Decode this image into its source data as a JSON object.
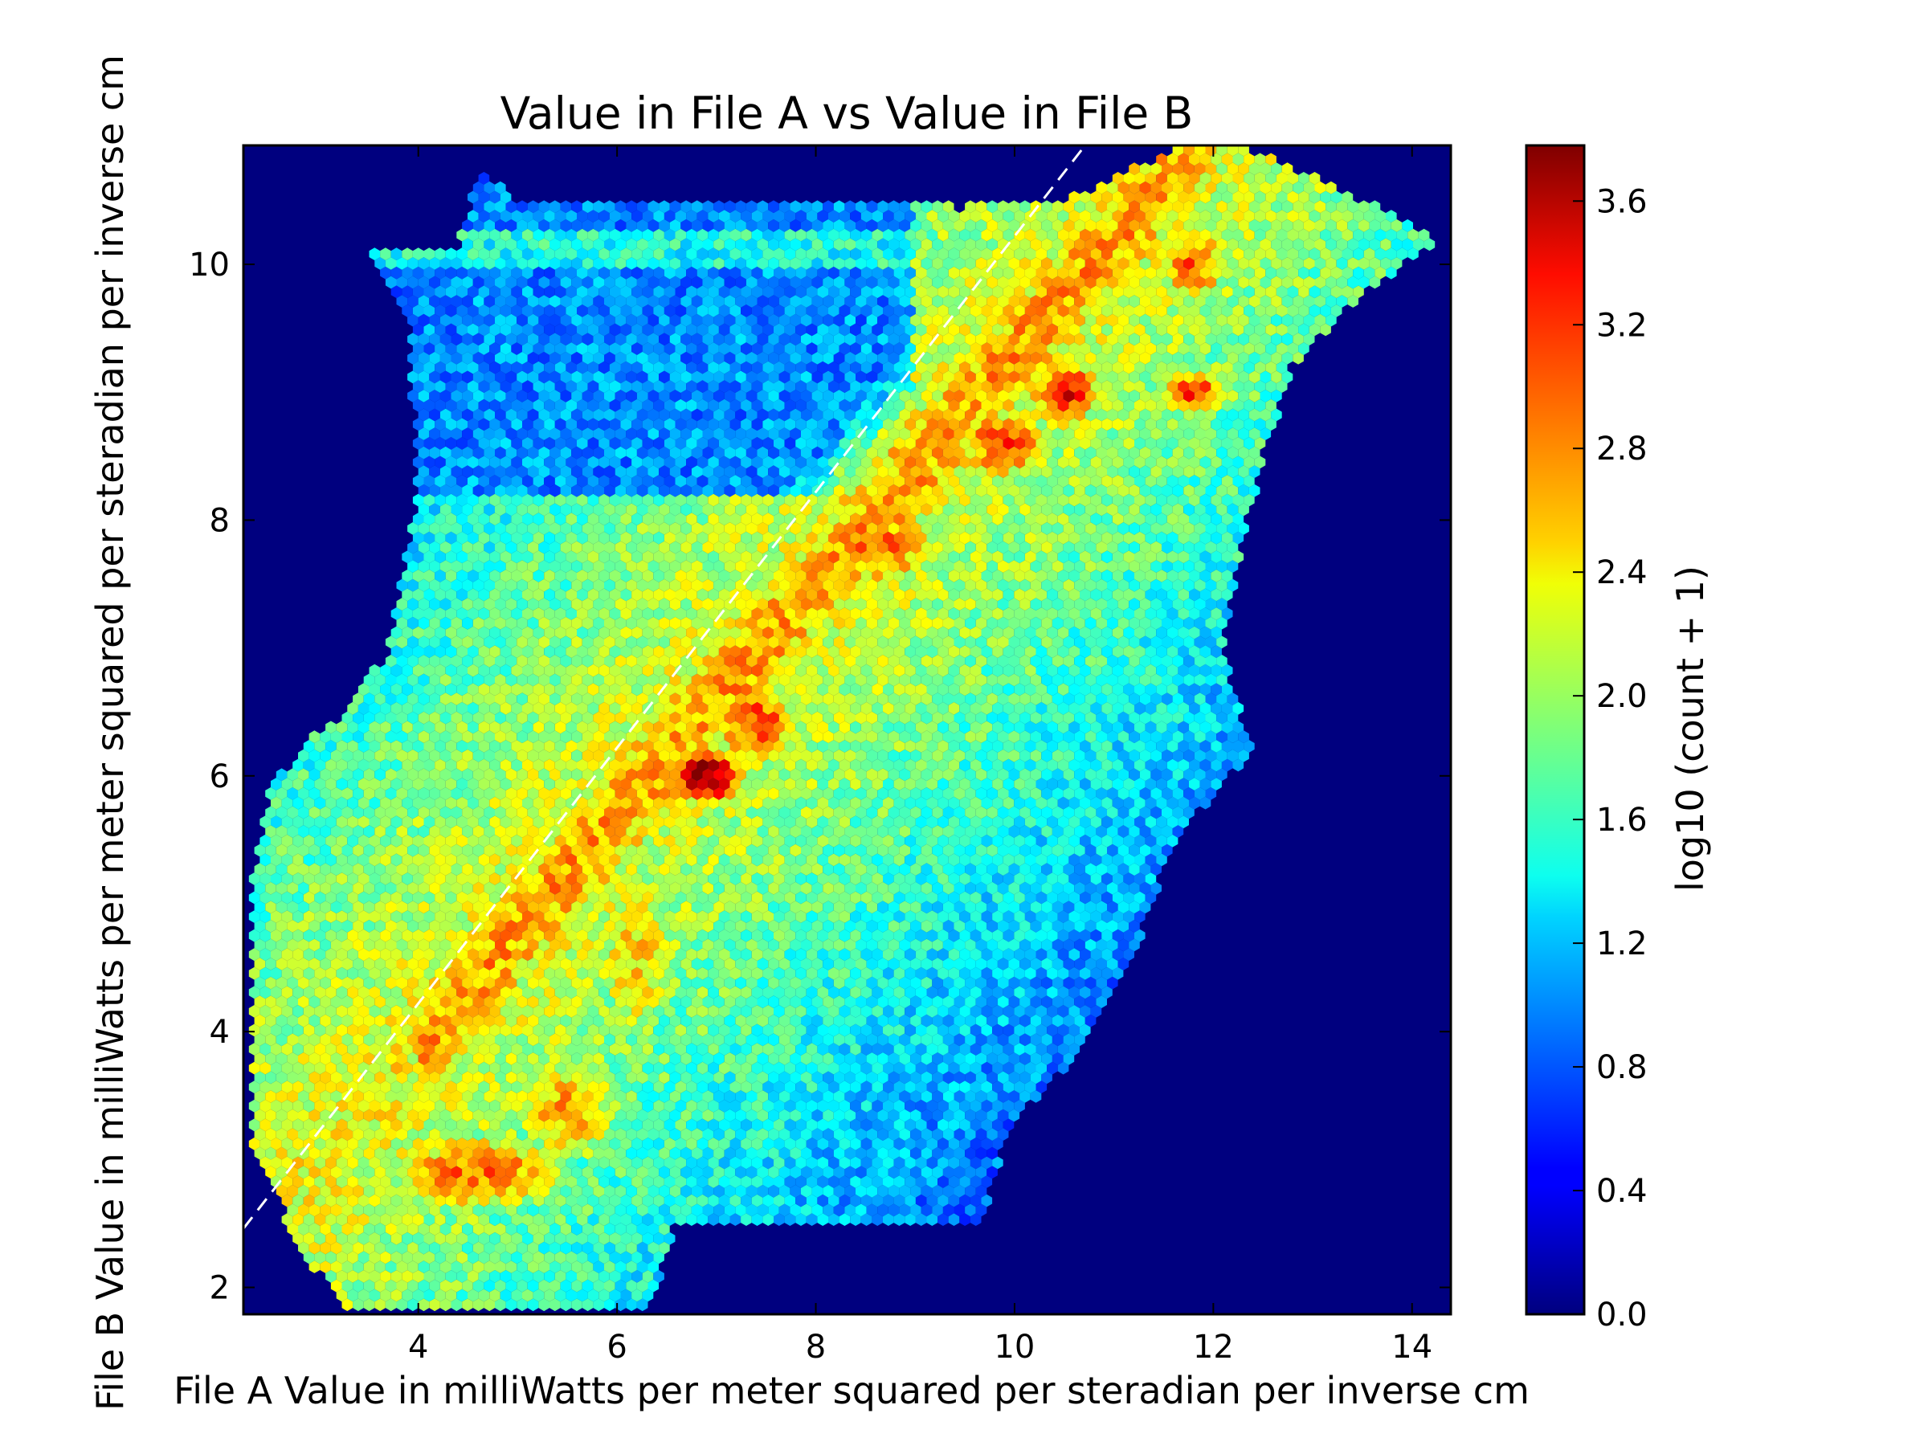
{
  "chart_data": {
    "type": "hexbin",
    "title": "Value in File A vs Value in File B",
    "xlabel": "File A Value in milliWatts per meter squared per steradian per inverse cm",
    "ylabel": "File B Value in milliWatts per meter squared per steradian per inverse cm",
    "xlim": [
      2.24,
      14.39
    ],
    "ylim": [
      1.79,
      10.93
    ],
    "xticks": [
      "4",
      "6",
      "8",
      "10",
      "12",
      "14"
    ],
    "xtick_values": [
      4,
      6,
      8,
      10,
      12,
      14
    ],
    "yticks": [
      "2",
      "4",
      "6",
      "8",
      "10"
    ],
    "ytick_values": [
      2,
      4,
      6,
      8,
      10
    ],
    "colorbar": {
      "label": "log10 (count + 1)",
      "range": [
        0.0,
        3.78
      ],
      "ticks": [
        "0.0",
        "0.4",
        "0.8",
        "1.2",
        "1.6",
        "2.0",
        "2.4",
        "2.8",
        "3.2",
        "3.6"
      ],
      "tick_values": [
        0,
        0.4,
        0.8,
        1.2,
        1.6,
        2.0,
        2.4,
        2.8,
        3.2,
        3.6
      ],
      "colormap": "jet"
    },
    "reference_line": {
      "slope": 1.0,
      "intercept": 0.22,
      "style": "dashed",
      "color": "#ffffff"
    },
    "background_color": "#00007f",
    "data_envelope": [
      [
        2.3,
        3.2
      ],
      [
        2.8,
        2.3
      ],
      [
        3.3,
        1.8
      ],
      [
        6.3,
        1.8
      ],
      [
        6.6,
        2.5
      ],
      [
        9.7,
        2.5
      ],
      [
        9.9,
        3.2
      ],
      [
        10.6,
        3.8
      ],
      [
        11.2,
        4.6
      ],
      [
        11.6,
        5.5
      ],
      [
        12.4,
        6.2
      ],
      [
        12.1,
        7.0
      ],
      [
        12.3,
        7.8
      ],
      [
        12.5,
        8.5
      ],
      [
        12.8,
        9.2
      ],
      [
        13.4,
        9.7
      ],
      [
        14.3,
        10.2
      ],
      [
        13.8,
        10.4
      ],
      [
        12.4,
        10.9
      ],
      [
        11.6,
        10.9
      ],
      [
        10.5,
        10.5
      ],
      [
        9.5,
        10.45
      ],
      [
        5.0,
        10.5
      ],
      [
        4.6,
        10.75
      ],
      [
        4.4,
        10.15
      ],
      [
        3.4,
        10.15
      ],
      [
        3.9,
        9.6
      ],
      [
        4.0,
        8.2
      ],
      [
        3.7,
        7.0
      ],
      [
        3.3,
        6.5
      ],
      [
        2.9,
        6.3
      ],
      [
        2.5,
        5.9
      ],
      [
        2.3,
        5.1
      ]
    ],
    "density_peaks": [
      {
        "x": 4.6,
        "y": 2.9,
        "value": 2.9
      },
      {
        "x": 5.5,
        "y": 3.4,
        "value": 2.7
      },
      {
        "x": 6.2,
        "y": 4.6,
        "value": 2.5
      },
      {
        "x": 6.9,
        "y": 6.0,
        "value": 3.75
      },
      {
        "x": 7.4,
        "y": 6.4,
        "value": 3.1
      },
      {
        "x": 8.6,
        "y": 7.8,
        "value": 2.95
      },
      {
        "x": 9.9,
        "y": 8.6,
        "value": 3.1
      },
      {
        "x": 10.5,
        "y": 9.0,
        "value": 3.35
      },
      {
        "x": 11.8,
        "y": 9.0,
        "value": 3.1
      },
      {
        "x": 11.8,
        "y": 10.0,
        "value": 3.0
      }
    ]
  }
}
